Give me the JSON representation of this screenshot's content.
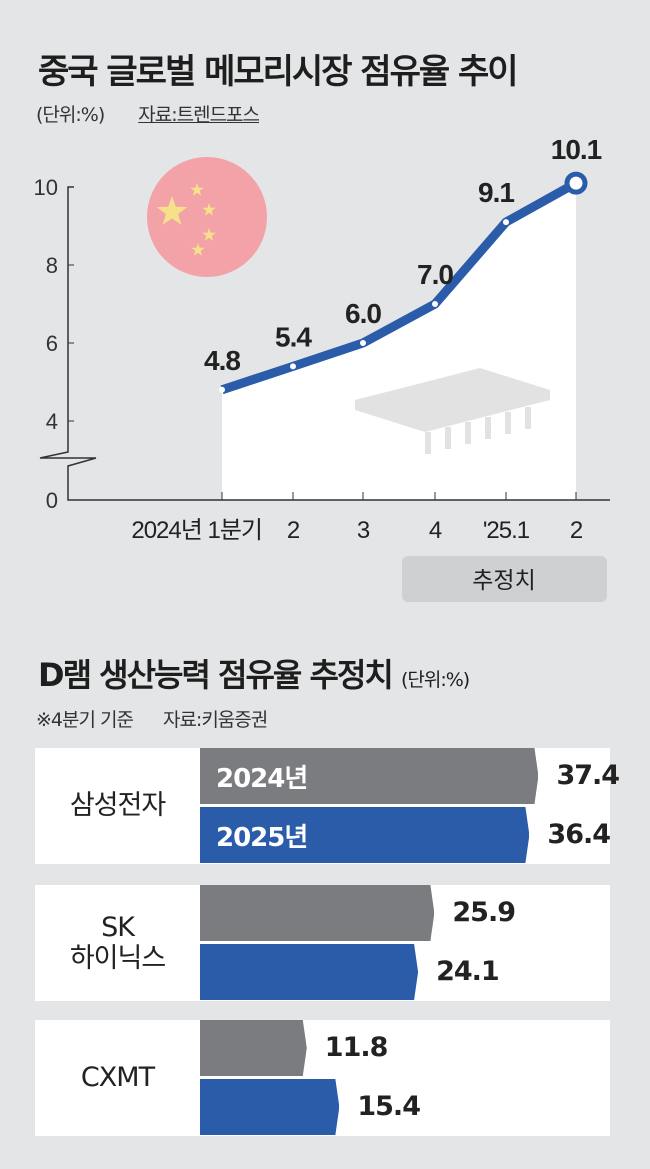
{
  "colors": {
    "series2024": "#7b7c7f",
    "series2025": "#2a5caa",
    "line": "#2a5caa",
    "flag": "#f3a3a8",
    "star": "#f7e08a",
    "chip": "#e2e2e2"
  },
  "chart_data": [
    {
      "type": "line",
      "title": "중국 글로벌 메모리시장 점유율 추이",
      "unit": "(단위:%)",
      "source": "자료:트렌드포스",
      "categories": [
        "2024년 1분기",
        "2",
        "3",
        "4",
        "'25.1",
        "2"
      ],
      "values": [
        4.8,
        5.4,
        6.0,
        7.0,
        9.1,
        10.1
      ],
      "data_labels": [
        "4.8",
        "5.4",
        "6.0",
        "7.0",
        "9.1",
        "10.1"
      ],
      "yticks": [
        "0",
        "4",
        "6",
        "8",
        "10"
      ],
      "ylim": [
        0,
        10
      ],
      "axis_break": "between 0 and 4",
      "estimate_label": "추정치",
      "estimate_categories": [
        "'25.1",
        "2"
      ]
    },
    {
      "type": "bar",
      "orientation": "horizontal",
      "title": "D램 생산능력 점유율 추정치",
      "unit": "(단위:%)",
      "note": "※4분기 기준",
      "source": "자료:키움증권",
      "categories": [
        "삼성전자",
        "SK 하이닉스",
        "CXMT"
      ],
      "category_lines": [
        [
          "삼성전자"
        ],
        [
          "SK",
          "하이닉스"
        ],
        [
          "CXMT"
        ]
      ],
      "series": [
        {
          "name": "2024년",
          "values": [
            37.4,
            25.9,
            11.8
          ],
          "labels": [
            "37.4",
            "25.9",
            "11.8"
          ]
        },
        {
          "name": "2025년",
          "values": [
            36.4,
            24.1,
            15.4
          ],
          "labels": [
            "36.4",
            "24.1",
            "15.4"
          ]
        }
      ]
    }
  ]
}
